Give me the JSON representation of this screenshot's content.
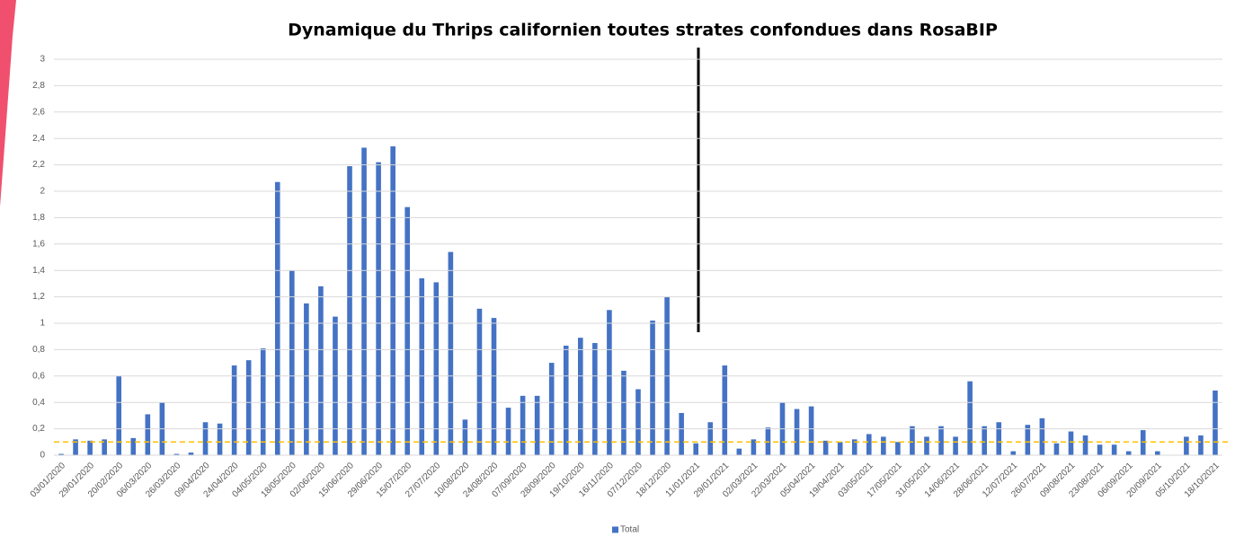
{
  "chart_data": {
    "type": "bar",
    "title": "Dynamique du Thrips californien toutes strates confondues dans RosaBIP",
    "categories": [
      "03/01/2020",
      null,
      "29/01/2020",
      null,
      "20/02/2020",
      null,
      "06/03/2020",
      null,
      "26/03/2020",
      null,
      "09/04/2020",
      null,
      "24/04/2020",
      null,
      "04/05/2020",
      null,
      "18/05/2020",
      null,
      "02/06/2020",
      null,
      "15/06/2020",
      null,
      "29/06/2020",
      null,
      "15/07/2020",
      null,
      "27/07/2020",
      null,
      "10/08/2020",
      null,
      "24/08/2020",
      null,
      "07/09/2020",
      null,
      "28/09/2020",
      null,
      "19/10/2020",
      null,
      "16/11/2020",
      null,
      "07/12/2020",
      null,
      "18/12/2020",
      null,
      "11/01/2021",
      null,
      "29/01/2021",
      null,
      "02/03/2021",
      null,
      "22/03/2021",
      null,
      "05/04/2021",
      null,
      "19/04/2021",
      null,
      "03/05/2021",
      null,
      "17/05/2021",
      null,
      "31/05/2021",
      null,
      "14/06/2021",
      null,
      "28/06/2021",
      null,
      "12/07/2021",
      null,
      "26/07/2021",
      null,
      "09/08/2021",
      null,
      "23/08/2021",
      null,
      "06/09/2021",
      null,
      "20/09/2021",
      null,
      "05/10/2021",
      null,
      "18/10/2021"
    ],
    "series": [
      {
        "name": "Total",
        "color": "#4472c4",
        "values": [
          0.01,
          0.12,
          0.11,
          0.12,
          0.6,
          0.13,
          0.31,
          0.4,
          0.01,
          0.02,
          0.25,
          0.24,
          0.68,
          0.72,
          0.81,
          2.07,
          1.4,
          1.15,
          1.28,
          1.05,
          2.19,
          2.33,
          2.22,
          2.34,
          1.88,
          1.34,
          1.31,
          1.54,
          0.27,
          1.11,
          1.04,
          0.36,
          0.45,
          0.45,
          0.7,
          0.83,
          0.89,
          0.85,
          1.1,
          0.64,
          0.5,
          1.02,
          1.2,
          0.32,
          0.09,
          0.25,
          0.68,
          0.05,
          0.12,
          0.21,
          0.4,
          0.35,
          0.37,
          0.11,
          0.1,
          0.12,
          0.16,
          0.14,
          0.1,
          0.22,
          0.14,
          0.22,
          0.14,
          0.56,
          0.22,
          0.25,
          0.03,
          0.23,
          0.28,
          0.09,
          0.18,
          0.15,
          0.08,
          0.08,
          0.03,
          0.19,
          0.03,
          0,
          0.14,
          0.15,
          0.49
        ]
      }
    ],
    "ylim": [
      0,
      3
    ],
    "yticks": [
      0,
      {
        "value": 0.2,
        "label": "0,2"
      },
      {
        "value": 0.4,
        "label": "0,4"
      },
      {
        "value": 0.6,
        "label": "0,6"
      },
      {
        "value": 0.8,
        "label": "0,8"
      },
      1,
      {
        "value": 1.2,
        "label": "1,2"
      },
      {
        "value": 1.4,
        "label": "1,4"
      },
      {
        "value": 1.6,
        "label": "1,6"
      },
      {
        "value": 1.8,
        "label": "1,8"
      },
      2,
      {
        "value": 2.2,
        "label": "2,2"
      },
      {
        "value": 2.4,
        "label": "2,4"
      },
      {
        "value": 2.6,
        "label": "2,6"
      },
      {
        "value": 2.8,
        "label": "2,8"
      },
      3
    ],
    "grid": true,
    "threshold": {
      "value": 0.1,
      "color": "#ffc000"
    },
    "legend": "bottom"
  }
}
